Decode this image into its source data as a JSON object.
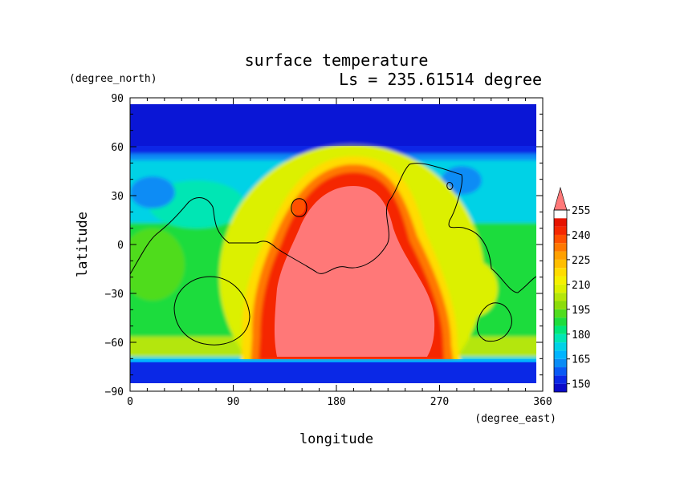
{
  "chart_data": {
    "type": "heatmap",
    "title": "surface temperature",
    "subtitle": "Ls = 235.61514 degree",
    "xlabel": "longitude",
    "ylabel": "latitude",
    "x_unit": "(degree_east)",
    "y_unit": "(degree_north)",
    "xlim": [
      0,
      360
    ],
    "ylim": [
      -90,
      90
    ],
    "x_ticks": [
      0,
      90,
      180,
      270,
      360
    ],
    "y_ticks": [
      90,
      60,
      30,
      0,
      -30,
      -60,
      -90
    ],
    "x_tick_labels": [
      "0",
      "90",
      "180",
      "270",
      "360"
    ],
    "y_tick_labels": [
      "90",
      "60",
      "30",
      "0",
      "−30",
      "−60",
      "−90"
    ],
    "colorbar": {
      "label_values": [
        255,
        240,
        225,
        210,
        195,
        180,
        165,
        150
      ],
      "labels": [
        "255",
        "240",
        "225",
        "210",
        "195",
        "180",
        "165",
        "150"
      ],
      "levels": [
        145,
        150,
        155,
        160,
        165,
        170,
        175,
        180,
        185,
        190,
        195,
        200,
        205,
        210,
        215,
        220,
        225,
        230,
        235,
        240,
        245,
        250,
        255,
        260
      ],
      "colors": [
        "#0a0ac8",
        "#0a28e6",
        "#0a5af5",
        "#0a8cf5",
        "#00b4ff",
        "#00d2e6",
        "#00e6b4",
        "#00e678",
        "#1edc3c",
        "#50dc1e",
        "#8cdc0a",
        "#b4e60a",
        "#dcf000",
        "#f5f000",
        "#ffdc00",
        "#ffbe00",
        "#ffa000",
        "#ff7800",
        "#ff5000",
        "#f52800",
        "#e61400",
        "#ff7878"
      ],
      "extend": "max"
    },
    "field_summary": {
      "north_polar_cap": {
        "lat_range": [
          55,
          85
        ],
        "value": 146
      },
      "south_polar_cap": {
        "lat_range": [
          -85,
          -72
        ],
        "value": 146
      },
      "hot_region_center": {
        "lon": 185,
        "lat": -20,
        "value": 262
      }
    }
  }
}
